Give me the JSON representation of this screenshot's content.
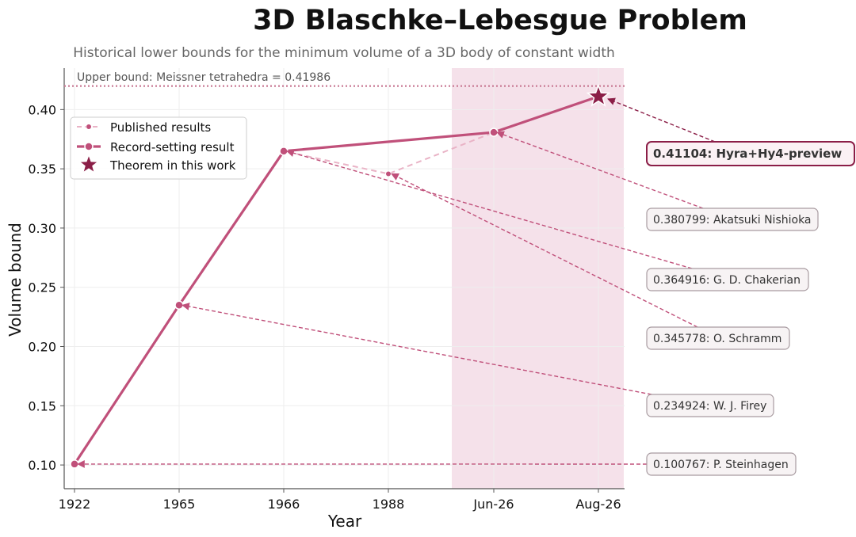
{
  "chart_data": {
    "type": "line",
    "title": "3D Blaschke–Lebesgue Problem",
    "subtitle": "Historical lower bounds for the minimum volume of a 3D body of constant width",
    "xlabel": "Year",
    "ylabel": "Volume bound",
    "categories": [
      "1922",
      "1965",
      "1966",
      "1988",
      "Jun-26",
      "Aug-26"
    ],
    "ylim": [
      0.08,
      0.435
    ],
    "yticks": [
      "0.10",
      "0.15",
      "0.20",
      "0.25",
      "0.30",
      "0.35",
      "0.40"
    ],
    "grid": true,
    "highlight_region": [
      "1988",
      "Aug-26"
    ],
    "upper_bound": {
      "value": 0.41986,
      "label": "Upper bound: Meissner tetrahedra = 0.41986"
    },
    "legend": {
      "position": "upper-left",
      "entries": [
        "Published results",
        "Record-setting result",
        "Theorem in this work"
      ]
    },
    "series": [
      {
        "name": "Published results",
        "x": [
          "1922",
          "1965",
          "1966",
          "1988",
          "Jun-26"
        ],
        "values": [
          0.100767,
          0.234924,
          0.364916,
          0.345778,
          0.380799
        ]
      },
      {
        "name": "Record-setting result",
        "x": [
          "1922",
          "1965",
          "1966",
          "Jun-26",
          "Aug-26"
        ],
        "values": [
          0.100767,
          0.234924,
          0.364916,
          0.380799,
          0.41104
        ]
      },
      {
        "name": "Theorem in this work",
        "x": [
          "Aug-26"
        ],
        "values": [
          0.41104
        ]
      }
    ],
    "annotations": [
      {
        "text": "0.41104: Hyra+Hy4-preview",
        "x": "Aug-26",
        "y": 0.41104,
        "bold": true
      },
      {
        "text": "0.380799: Akatsuki Nishioka",
        "x": "Jun-26",
        "y": 0.380799,
        "bold": false
      },
      {
        "text": "0.364916: G. D. Chakerian",
        "x": "1966",
        "y": 0.364916,
        "bold": false
      },
      {
        "text": "0.345778: O. Schramm",
        "x": "1988",
        "y": 0.345778,
        "bold": false
      },
      {
        "text": "0.234924: W. J. Firey",
        "x": "1965",
        "y": 0.234924,
        "bold": false
      },
      {
        "text": "0.100767: P. Steinhagen",
        "x": "1922",
        "y": 0.100767,
        "bold": false
      }
    ],
    "colors": {
      "record": "#c0507a",
      "published": "#e9b3c6",
      "star": "#8b1e47",
      "region": "#f5e1ea",
      "upper_bound": "#c97a94",
      "annotation_arrow": "#c0507a"
    }
  }
}
